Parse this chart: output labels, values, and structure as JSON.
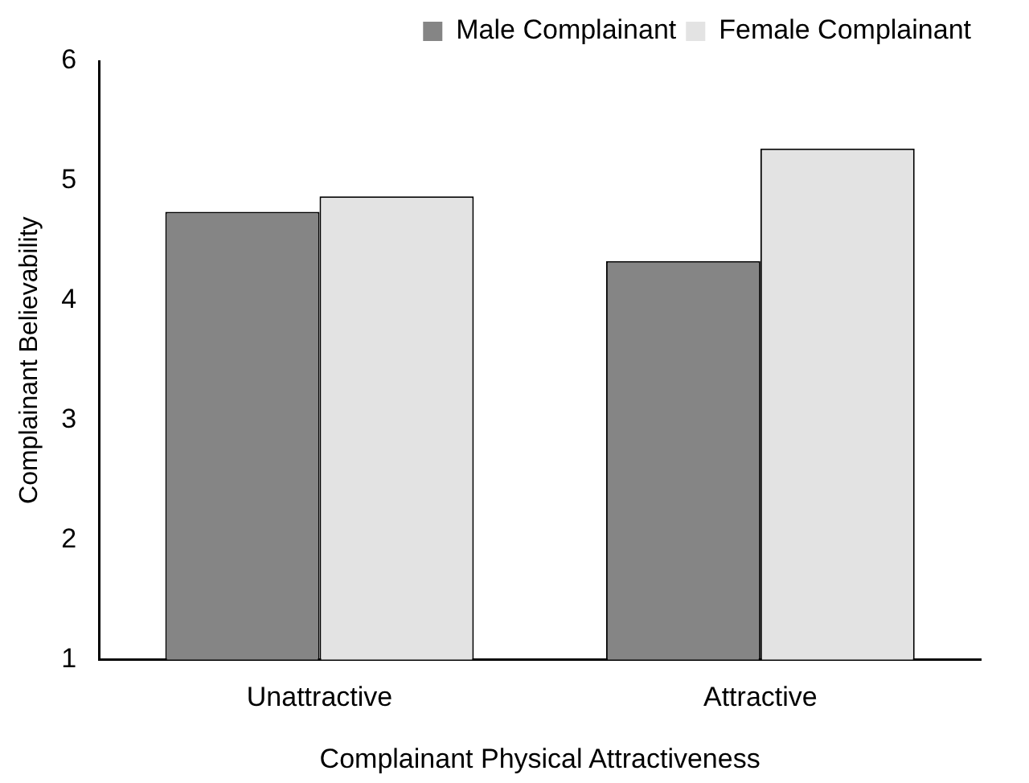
{
  "chart_data": {
    "type": "bar",
    "xlabel": "Complainant Physical Attractiveness",
    "ylabel": "Complainant Believability",
    "categories": [
      "Unattractive",
      "Attractive"
    ],
    "series": [
      {
        "name": "Male Complainant",
        "color": "#858585",
        "values": [
          4.74,
          4.33
        ]
      },
      {
        "name": "Female Complainant",
        "color": "#e3e3e3",
        "values": [
          4.87,
          5.27
        ]
      }
    ],
    "ylim": [
      1,
      6
    ],
    "yticks": [
      1,
      2,
      3,
      4,
      5,
      6
    ],
    "grid": false,
    "legend": "top right"
  }
}
